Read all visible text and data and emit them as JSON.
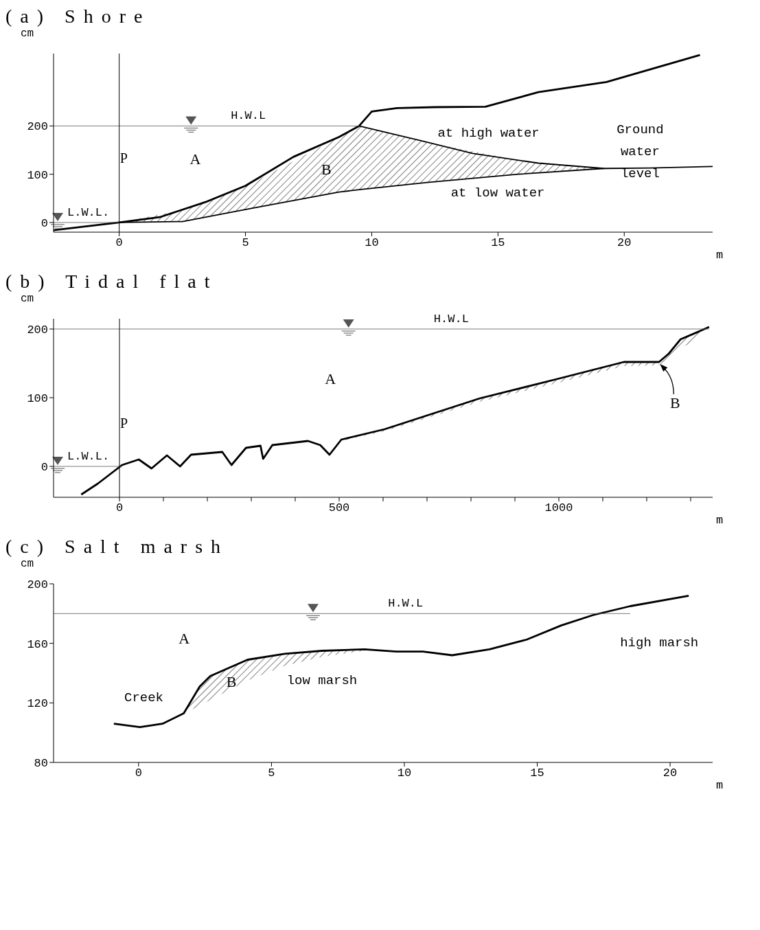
{
  "chart_data": [
    {
      "type": "line",
      "title": "(a) Shore",
      "xlabel": "m",
      "ylabel": "cm",
      "xlim": [
        -2.6,
        23.5
      ],
      "xticks": [
        0,
        5,
        10,
        15,
        20
      ],
      "ylim": [
        -20,
        350
      ],
      "yticks": [
        0,
        100,
        200
      ],
      "grid": false,
      "marker": "none",
      "line_style": "solid",
      "series": [
        {
          "color": "#000000",
          "x": [
            -2.6,
            0,
            1.6,
            3.4,
            5,
            6.9,
            8.7,
            9.5,
            10,
            11,
            12.5,
            14.5,
            16.6,
            19.3,
            23
          ],
          "values": [
            -16,
            0,
            11,
            42,
            76,
            136,
            177,
            200,
            230,
            237,
            239,
            240,
            270,
            291,
            347
          ]
        },
        {
          "color": "#000000",
          "x": [
            9.5,
            11.9,
            14,
            16.6,
            19.2,
            21,
            23.5
          ],
          "values": [
            200,
            170,
            143,
            123,
            112,
            113,
            116
          ]
        },
        {
          "color": "#000000",
          "x": [
            0,
            2.5,
            5.2,
            8.7,
            9.5,
            12.2,
            15.8,
            19.2
          ],
          "values": [
            0,
            2,
            29,
            63,
            68,
            83,
            100,
            112
          ],
          "lower": [
            0,
            2,
            29,
            63,
            68,
            83,
            100,
            112
          ],
          "upper": [
            0,
            26,
            80,
            177,
            200,
            166,
            129,
            112
          ]
        }
      ],
      "ref_lines": [
        {
          "axis": "y",
          "value": 200,
          "label": "H.W.L",
          "color": "#555555"
        },
        {
          "axis": "y",
          "value": 0,
          "label": "L.W.L.",
          "color": "#555555"
        },
        {
          "axis": "x",
          "value": 0,
          "label": "P",
          "color": "#000000"
        }
      ],
      "annotations": [
        "A",
        "B",
        "at high water",
        "Ground\nwater\nlevel",
        "at low water"
      ]
    },
    {
      "type": "line",
      "title": "(b) Tidal flat",
      "xlabel": "m",
      "ylabel": "cm",
      "xlim": [
        -150,
        1350
      ],
      "xticks": [
        0,
        {
          "value": 100,
          "label": null
        },
        {
          "value": 200,
          "label": null
        },
        {
          "value": 300,
          "label": null
        },
        {
          "value": 400,
          "label": null
        },
        500,
        {
          "value": 600,
          "label": null
        },
        {
          "value": 700,
          "label": null
        },
        {
          "value": 800,
          "label": null
        },
        {
          "value": 900,
          "label": null
        },
        1000,
        {
          "value": 1100,
          "label": null
        },
        {
          "value": 1200,
          "label": null
        },
        {
          "value": 1300,
          "label": null
        }
      ],
      "ylim": [
        -45,
        215
      ],
      "yticks": [
        0,
        100,
        200
      ],
      "grid": false,
      "marker": "none",
      "line_style": "solid",
      "series": [
        {
          "color": "#000000",
          "x": [
            -87,
            -49,
            6,
            44,
            73,
            108,
            138,
            163,
            234,
            255,
            288,
            321,
            327,
            348,
            429,
            457,
            478,
            505,
            603,
            820,
            995,
            1148,
            1228,
            1250,
            1277,
            1321,
            1342
          ],
          "values": [
            -41,
            -25,
            2,
            10,
            -3,
            16,
            0,
            17,
            21,
            2,
            27,
            30,
            11,
            31,
            37,
            31,
            17,
            39,
            54,
            99,
            127,
            152,
            152,
            164,
            185,
            197,
            203
          ],
          "lower": [
            null,
            null,
            null,
            null,
            null,
            null,
            null,
            null,
            null,
            null,
            null,
            null,
            null,
            null,
            null,
            null,
            null,
            37,
            51,
            94,
            121,
            146,
            147,
            158,
            172,
            187,
            null
          ],
          "upper": [
            null,
            null,
            null,
            null,
            null,
            null,
            null,
            null,
            null,
            null,
            null,
            null,
            null,
            null,
            null,
            null,
            null,
            39,
            54,
            99,
            127,
            152,
            152,
            164,
            185,
            197,
            null
          ]
        }
      ],
      "ref_lines": [
        {
          "axis": "y",
          "value": 200,
          "label": "H.W.L",
          "color": "#555555"
        },
        {
          "axis": "y",
          "value": 0,
          "label": "L.W.L.",
          "color": "#555555"
        },
        {
          "axis": "x",
          "value": 0,
          "label": "P",
          "color": "#000000"
        }
      ],
      "annotations": [
        "A",
        "B"
      ]
    },
    {
      "type": "line",
      "title": "(c) Salt marsh",
      "xlabel": "m",
      "ylabel": "cm",
      "xlim": [
        -3.2,
        21.6
      ],
      "xticks": [
        0,
        5,
        10,
        15,
        20
      ],
      "ylim": [
        80,
        200
      ],
      "yticks": [
        80,
        120,
        160,
        200
      ],
      "grid": false,
      "marker": "none",
      "line_style": "solid",
      "series": [
        {
          "color": "#000000",
          "x": [
            -0.93,
            0.05,
            0.9,
            1.7,
            2.3,
            2.7,
            4.1,
            5.5,
            6.9,
            8.5,
            9.7,
            10.7,
            11.8,
            13.2,
            14.6,
            15.9,
            17.1,
            18.5,
            20.7
          ],
          "values": [
            106,
            103.7,
            106,
            113,
            131,
            138,
            149,
            153,
            155,
            156,
            154.5,
            154.5,
            152,
            156,
            162.5,
            172,
            179,
            185,
            192
          ],
          "lower": [
            null,
            null,
            null,
            113,
            118,
            122,
            135,
            145,
            151,
            155,
            null,
            null,
            null,
            null,
            null,
            null,
            null,
            null,
            null
          ],
          "upper": [
            null,
            null,
            null,
            113,
            131,
            138,
            149,
            153,
            155,
            156,
            null,
            null,
            null,
            null,
            null,
            null,
            null,
            null,
            null
          ]
        }
      ],
      "ref_lines": [
        {
          "axis": "y",
          "value": 180,
          "label": "H.W.L",
          "color": "#555555"
        }
      ],
      "annotations": [
        "A",
        "B",
        "Creek",
        {
          "text": "low marsh",
          "x": 6.9,
          "y": 155
        },
        "high marsh"
      ]
    }
  ]
}
